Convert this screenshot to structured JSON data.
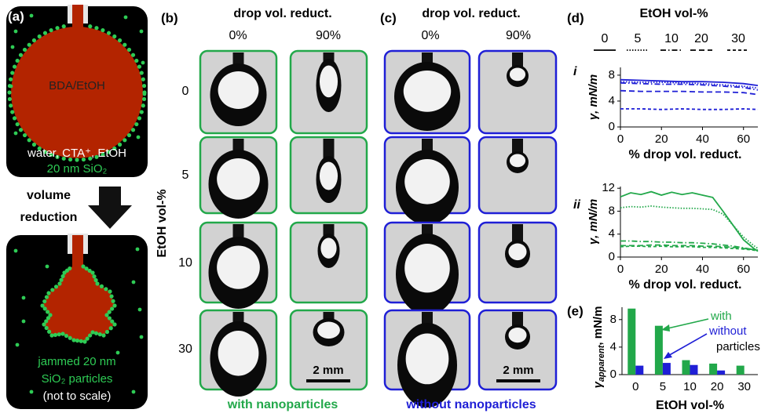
{
  "panels": {
    "a": {
      "label": "(a)",
      "drop_label": "BDA/EtOH",
      "medium": "water, CTA⁺, EtOH",
      "particles": "20 nm SiO₂",
      "arrow_label": [
        "volume",
        "reduction"
      ],
      "jammed": [
        "jammed 20 nm",
        "SiO₂ particles",
        "(not to scale)"
      ]
    },
    "b": {
      "label": "(b)",
      "header": "drop vol. reduct.",
      "columns": [
        "0%",
        "90%"
      ],
      "row_axis": "EtOH vol-%",
      "rows": [
        "0",
        "5",
        "10",
        "30"
      ],
      "scale_bar": "2 mm",
      "caption": "with nanoparticles"
    },
    "c": {
      "label": "(c)",
      "header": "drop vol. reduct.",
      "columns": [
        "0%",
        "90%"
      ],
      "scale_bar": "2 mm",
      "caption": "without nanoparticles"
    },
    "d": {
      "label": "(d)",
      "legend_title": "EtOH vol-%"
    },
    "e": {
      "label": "(e)"
    }
  },
  "chart_data": [
    {
      "type": "line",
      "label": "i",
      "color": "#1f1fd6",
      "ylabel": "γ, mN/m",
      "xlabel": "% drop vol. reduct.",
      "xlim": [
        0,
        67
      ],
      "ylim": [
        0,
        9.2
      ],
      "xticks": [
        0,
        20,
        40,
        60
      ],
      "yticks": [
        0,
        4,
        8
      ],
      "x": [
        0,
        10,
        20,
        30,
        40,
        50,
        60,
        67
      ],
      "series": [
        {
          "name": "0",
          "dash": "solid",
          "values": [
            7.3,
            7.2,
            7.1,
            7.0,
            7.0,
            6.9,
            6.7,
            6.4
          ]
        },
        {
          "name": "5",
          "dash": "dotted",
          "values": [
            7.0,
            6.9,
            6.9,
            6.8,
            6.7,
            6.5,
            6.3,
            6.0
          ]
        },
        {
          "name": "10",
          "dash": "dashdot",
          "values": [
            6.8,
            6.7,
            6.6,
            6.6,
            6.5,
            6.3,
            6.1,
            5.7
          ]
        },
        {
          "name": "20",
          "dash": "dash",
          "values": [
            5.6,
            5.5,
            5.5,
            5.5,
            5.4,
            5.4,
            5.3,
            5.0
          ]
        },
        {
          "name": "30",
          "dash": "finedash",
          "values": [
            2.8,
            2.8,
            2.7,
            2.8,
            2.7,
            2.7,
            2.8,
            2.7
          ]
        }
      ]
    },
    {
      "type": "line",
      "label": "ii",
      "color": "#22a84a",
      "ylabel": "γ, mN/m",
      "xlabel": "% drop vol. reduct.",
      "xlim": [
        0,
        67
      ],
      "ylim": [
        0,
        12.3
      ],
      "xticks": [
        0,
        20,
        40,
        60
      ],
      "yticks": [
        0,
        4,
        8,
        12
      ],
      "x": [
        0,
        5,
        10,
        15,
        20,
        25,
        30,
        35,
        40,
        45,
        50,
        55,
        60,
        65,
        67
      ],
      "series": [
        {
          "name": "0",
          "dash": "solid",
          "values": [
            10.5,
            11.2,
            10.9,
            11.4,
            10.8,
            11.3,
            10.9,
            11.2,
            10.8,
            10.4,
            8.0,
            5.5,
            3.0,
            1.5,
            1.0
          ]
        },
        {
          "name": "5",
          "dash": "dotted",
          "values": [
            8.6,
            8.8,
            8.7,
            8.9,
            8.7,
            8.6,
            8.5,
            8.5,
            8.4,
            8.3,
            7.5,
            5.5,
            3.5,
            2.0,
            1.5
          ]
        },
        {
          "name": "10",
          "dash": "dashdot",
          "values": [
            2.8,
            2.8,
            2.7,
            2.7,
            2.6,
            2.6,
            2.5,
            2.5,
            2.4,
            2.3,
            2.1,
            1.9,
            1.6,
            1.3,
            1.2
          ]
        },
        {
          "name": "20",
          "dash": "dash",
          "values": [
            2.0,
            2.0,
            2.0,
            2.1,
            2.1,
            2.0,
            2.0,
            2.0,
            1.9,
            1.9,
            1.8,
            1.7,
            1.5,
            1.3,
            1.2
          ]
        },
        {
          "name": "30",
          "dash": "finedash",
          "values": [
            1.8,
            1.9,
            1.9,
            1.8,
            1.9,
            1.8,
            1.8,
            1.8,
            1.7,
            1.7,
            1.6,
            1.5,
            1.4,
            1.2,
            1.1
          ]
        }
      ]
    },
    {
      "type": "bar",
      "ylabel": "γ",
      "ylabel_subscript": "apparent",
      "ylabel_unit": ", mN/m",
      "xlabel": "EtOH vol-%",
      "annotation": "particles",
      "ylim": [
        0,
        9.8
      ],
      "yticks": [
        0,
        4,
        8
      ],
      "categories": [
        "0",
        "5",
        "10",
        "20",
        "30"
      ],
      "series": [
        {
          "name": "with",
          "color": "#22a84a",
          "values": [
            9.6,
            7.1,
            2.1,
            1.6,
            1.3
          ]
        },
        {
          "name": "without",
          "color": "#1f1fd6",
          "values": [
            1.3,
            1.7,
            1.4,
            0.6,
            null
          ]
        }
      ]
    }
  ]
}
